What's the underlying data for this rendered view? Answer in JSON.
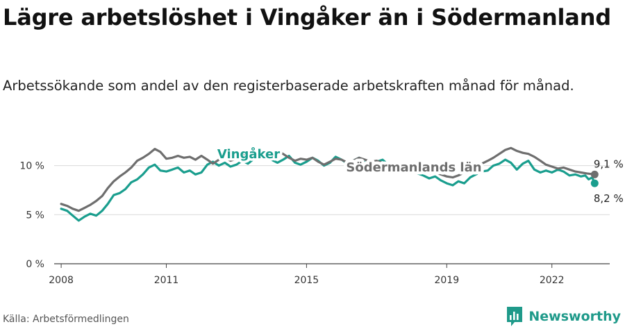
{
  "header": {
    "title": "Lägre arbetslöshet i Vingåker än i Södermanland",
    "subtitle": "Arbetssökande som andel av den registerbaserade arbetskraften månad för månad."
  },
  "footer": {
    "source": "Källa: Arbetsförmedlingen",
    "brand": "Newsworthy"
  },
  "colors": {
    "vingaker": "#1a9e8e",
    "lan": "#6e6e6e",
    "grid": "#d9d9d9",
    "axis": "#444444"
  },
  "chart_data": {
    "type": "line",
    "title": "Lägre arbetslöshet i Vingåker än i Södermanland",
    "xlabel": "",
    "ylabel": "",
    "xlim": [
      2007.8,
      2023.65
    ],
    "ylim": [
      0,
      11.6
    ],
    "x_ticks": [
      2008,
      2011,
      2015,
      2019,
      2022
    ],
    "y_ticks": [
      0,
      5,
      10
    ],
    "y_tick_labels": [
      "0 %",
      "5 %",
      "10 %"
    ],
    "series": [
      {
        "name": "Vingåker",
        "label": "Vingåker",
        "color": "#1a9e8e",
        "end_label": "8,2 %",
        "points": [
          [
            2008.0,
            5.6
          ],
          [
            2008.17,
            5.4
          ],
          [
            2008.33,
            4.9
          ],
          [
            2008.5,
            4.4
          ],
          [
            2008.67,
            4.8
          ],
          [
            2008.83,
            5.1
          ],
          [
            2009.0,
            4.9
          ],
          [
            2009.17,
            5.4
          ],
          [
            2009.33,
            6.1
          ],
          [
            2009.5,
            7.0
          ],
          [
            2009.67,
            7.2
          ],
          [
            2009.83,
            7.6
          ],
          [
            2010.0,
            8.3
          ],
          [
            2010.17,
            8.6
          ],
          [
            2010.33,
            9.1
          ],
          [
            2010.5,
            9.8
          ],
          [
            2010.67,
            10.1
          ],
          [
            2010.83,
            9.5
          ],
          [
            2011.0,
            9.4
          ],
          [
            2011.17,
            9.6
          ],
          [
            2011.33,
            9.8
          ],
          [
            2011.5,
            9.3
          ],
          [
            2011.67,
            9.5
          ],
          [
            2011.83,
            9.1
          ],
          [
            2012.0,
            9.3
          ],
          [
            2012.17,
            10.1
          ],
          [
            2012.33,
            10.4
          ],
          [
            2012.5,
            10.0
          ],
          [
            2012.67,
            10.3
          ],
          [
            2012.83,
            9.9
          ],
          [
            2013.0,
            10.1
          ],
          [
            2013.17,
            10.5
          ],
          [
            2013.33,
            10.2
          ],
          [
            2013.5,
            10.7
          ],
          [
            2013.67,
            10.9
          ],
          [
            2013.83,
            11.1
          ],
          [
            2014.0,
            10.6
          ],
          [
            2014.17,
            10.3
          ],
          [
            2014.33,
            10.6
          ],
          [
            2014.5,
            11.0
          ],
          [
            2014.67,
            10.3
          ],
          [
            2014.83,
            10.1
          ],
          [
            2015.0,
            10.4
          ],
          [
            2015.17,
            10.8
          ],
          [
            2015.33,
            10.5
          ],
          [
            2015.5,
            10.0
          ],
          [
            2015.67,
            10.3
          ],
          [
            2015.83,
            10.9
          ],
          [
            2016.0,
            10.6
          ],
          [
            2016.17,
            10.2
          ],
          [
            2016.33,
            10.5
          ],
          [
            2016.5,
            10.8
          ],
          [
            2016.67,
            10.3
          ],
          [
            2016.83,
            10.0
          ],
          [
            2017.0,
            10.4
          ],
          [
            2017.17,
            10.6
          ],
          [
            2017.33,
            10.1
          ],
          [
            2017.5,
            9.8
          ],
          [
            2017.67,
            10.0
          ],
          [
            2017.83,
            9.5
          ],
          [
            2018.0,
            9.7
          ],
          [
            2018.17,
            9.2
          ],
          [
            2018.33,
            9.0
          ],
          [
            2018.5,
            8.7
          ],
          [
            2018.67,
            8.9
          ],
          [
            2018.83,
            8.5
          ],
          [
            2019.0,
            8.2
          ],
          [
            2019.17,
            8.0
          ],
          [
            2019.33,
            8.4
          ],
          [
            2019.5,
            8.2
          ],
          [
            2019.67,
            8.8
          ],
          [
            2019.83,
            9.1
          ],
          [
            2020.0,
            9.4
          ],
          [
            2020.17,
            9.5
          ],
          [
            2020.33,
            10.0
          ],
          [
            2020.5,
            10.2
          ],
          [
            2020.67,
            10.6
          ],
          [
            2020.83,
            10.3
          ],
          [
            2021.0,
            9.6
          ],
          [
            2021.17,
            10.2
          ],
          [
            2021.33,
            10.5
          ],
          [
            2021.5,
            9.6
          ],
          [
            2021.67,
            9.3
          ],
          [
            2021.83,
            9.5
          ],
          [
            2022.0,
            9.3
          ],
          [
            2022.17,
            9.6
          ],
          [
            2022.33,
            9.4
          ],
          [
            2022.5,
            9.0
          ],
          [
            2022.67,
            9.1
          ],
          [
            2022.83,
            8.9
          ],
          [
            2022.95,
            9.0
          ],
          [
            2023.05,
            8.6
          ],
          [
            2023.15,
            8.8
          ],
          [
            2023.22,
            8.2
          ]
        ]
      },
      {
        "name": "Södermanlands län",
        "label": "Södermanlands län",
        "color": "#6e6e6e",
        "end_label": "9,1 %",
        "points": [
          [
            2008.0,
            6.1
          ],
          [
            2008.17,
            5.9
          ],
          [
            2008.33,
            5.6
          ],
          [
            2008.5,
            5.4
          ],
          [
            2008.67,
            5.7
          ],
          [
            2008.83,
            6.0
          ],
          [
            2009.0,
            6.4
          ],
          [
            2009.17,
            6.9
          ],
          [
            2009.33,
            7.7
          ],
          [
            2009.5,
            8.4
          ],
          [
            2009.67,
            8.9
          ],
          [
            2009.83,
            9.3
          ],
          [
            2010.0,
            9.8
          ],
          [
            2010.17,
            10.5
          ],
          [
            2010.33,
            10.8
          ],
          [
            2010.5,
            11.2
          ],
          [
            2010.67,
            11.7
          ],
          [
            2010.83,
            11.4
          ],
          [
            2011.0,
            10.7
          ],
          [
            2011.17,
            10.8
          ],
          [
            2011.33,
            11.0
          ],
          [
            2011.5,
            10.8
          ],
          [
            2011.67,
            10.9
          ],
          [
            2011.83,
            10.6
          ],
          [
            2012.0,
            11.0
          ],
          [
            2012.17,
            10.6
          ],
          [
            2012.33,
            10.2
          ],
          [
            2012.5,
            10.6
          ],
          [
            2012.67,
            10.8
          ],
          [
            2012.83,
            10.5
          ],
          [
            2013.0,
            10.7
          ],
          [
            2013.17,
            11.0
          ],
          [
            2013.33,
            11.2
          ],
          [
            2013.5,
            11.5
          ],
          [
            2013.67,
            11.2
          ],
          [
            2013.83,
            11.0
          ],
          [
            2014.0,
            11.0
          ],
          [
            2014.17,
            11.5
          ],
          [
            2014.33,
            11.2
          ],
          [
            2014.5,
            10.8
          ],
          [
            2014.67,
            10.5
          ],
          [
            2014.83,
            10.7
          ],
          [
            2015.0,
            10.6
          ],
          [
            2015.17,
            10.8
          ],
          [
            2015.33,
            10.4
          ],
          [
            2015.5,
            10.1
          ],
          [
            2015.67,
            10.4
          ],
          [
            2015.83,
            10.7
          ],
          [
            2016.0,
            10.6
          ],
          [
            2016.17,
            10.3
          ],
          [
            2016.33,
            10.5
          ],
          [
            2016.5,
            10.8
          ],
          [
            2016.67,
            10.6
          ],
          [
            2016.83,
            10.4
          ],
          [
            2017.0,
            10.5
          ],
          [
            2017.17,
            10.3
          ],
          [
            2017.33,
            10.0
          ],
          [
            2017.5,
            9.9
          ],
          [
            2017.67,
            10.0
          ],
          [
            2017.83,
            9.7
          ],
          [
            2018.0,
            9.6
          ],
          [
            2018.17,
            9.5
          ],
          [
            2018.33,
            9.4
          ],
          [
            2018.5,
            9.2
          ],
          [
            2018.67,
            9.3
          ],
          [
            2018.83,
            9.1
          ],
          [
            2019.0,
            8.9
          ],
          [
            2019.17,
            8.8
          ],
          [
            2019.33,
            9.0
          ],
          [
            2019.5,
            9.3
          ],
          [
            2019.67,
            9.6
          ],
          [
            2019.83,
            9.8
          ],
          [
            2020.0,
            10.2
          ],
          [
            2020.17,
            10.5
          ],
          [
            2020.33,
            10.8
          ],
          [
            2020.5,
            11.2
          ],
          [
            2020.67,
            11.6
          ],
          [
            2020.83,
            11.8
          ],
          [
            2021.0,
            11.5
          ],
          [
            2021.17,
            11.3
          ],
          [
            2021.33,
            11.2
          ],
          [
            2021.5,
            10.9
          ],
          [
            2021.67,
            10.5
          ],
          [
            2021.83,
            10.1
          ],
          [
            2022.0,
            9.9
          ],
          [
            2022.17,
            9.7
          ],
          [
            2022.33,
            9.8
          ],
          [
            2022.5,
            9.6
          ],
          [
            2022.67,
            9.4
          ],
          [
            2022.83,
            9.3
          ],
          [
            2023.0,
            9.2
          ],
          [
            2023.22,
            9.1
          ]
        ]
      }
    ]
  }
}
